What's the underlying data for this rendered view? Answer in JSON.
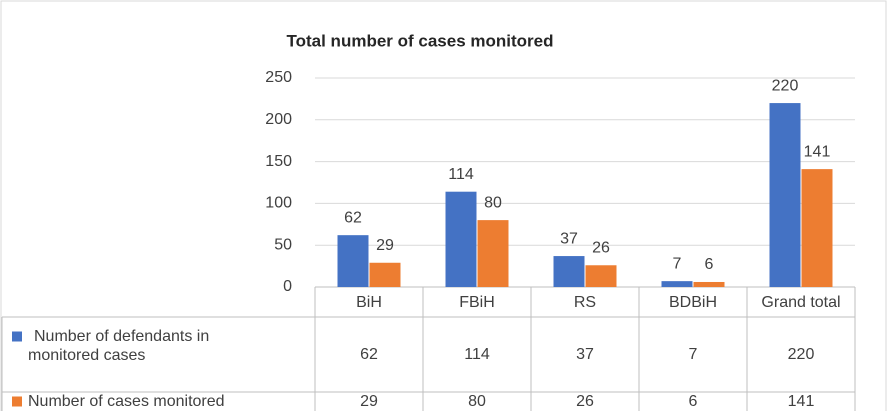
{
  "chart_data": {
    "type": "bar",
    "title": "Total number of cases monitored",
    "categories": [
      "BiH",
      "FBiH",
      "RS",
      "BDBiH",
      "Grand total"
    ],
    "series": [
      {
        "name": "Number of defendants in monitored cases",
        "color": "#4472c4",
        "values": [
          62,
          114,
          37,
          7,
          220
        ]
      },
      {
        "name": "Number of cases monitored",
        "color": "#ed7d31",
        "values": [
          29,
          80,
          26,
          6,
          141
        ]
      }
    ],
    "ylim": [
      0,
      250
    ],
    "yticks": [
      0,
      50,
      100,
      150,
      200,
      250
    ],
    "grid": true
  }
}
